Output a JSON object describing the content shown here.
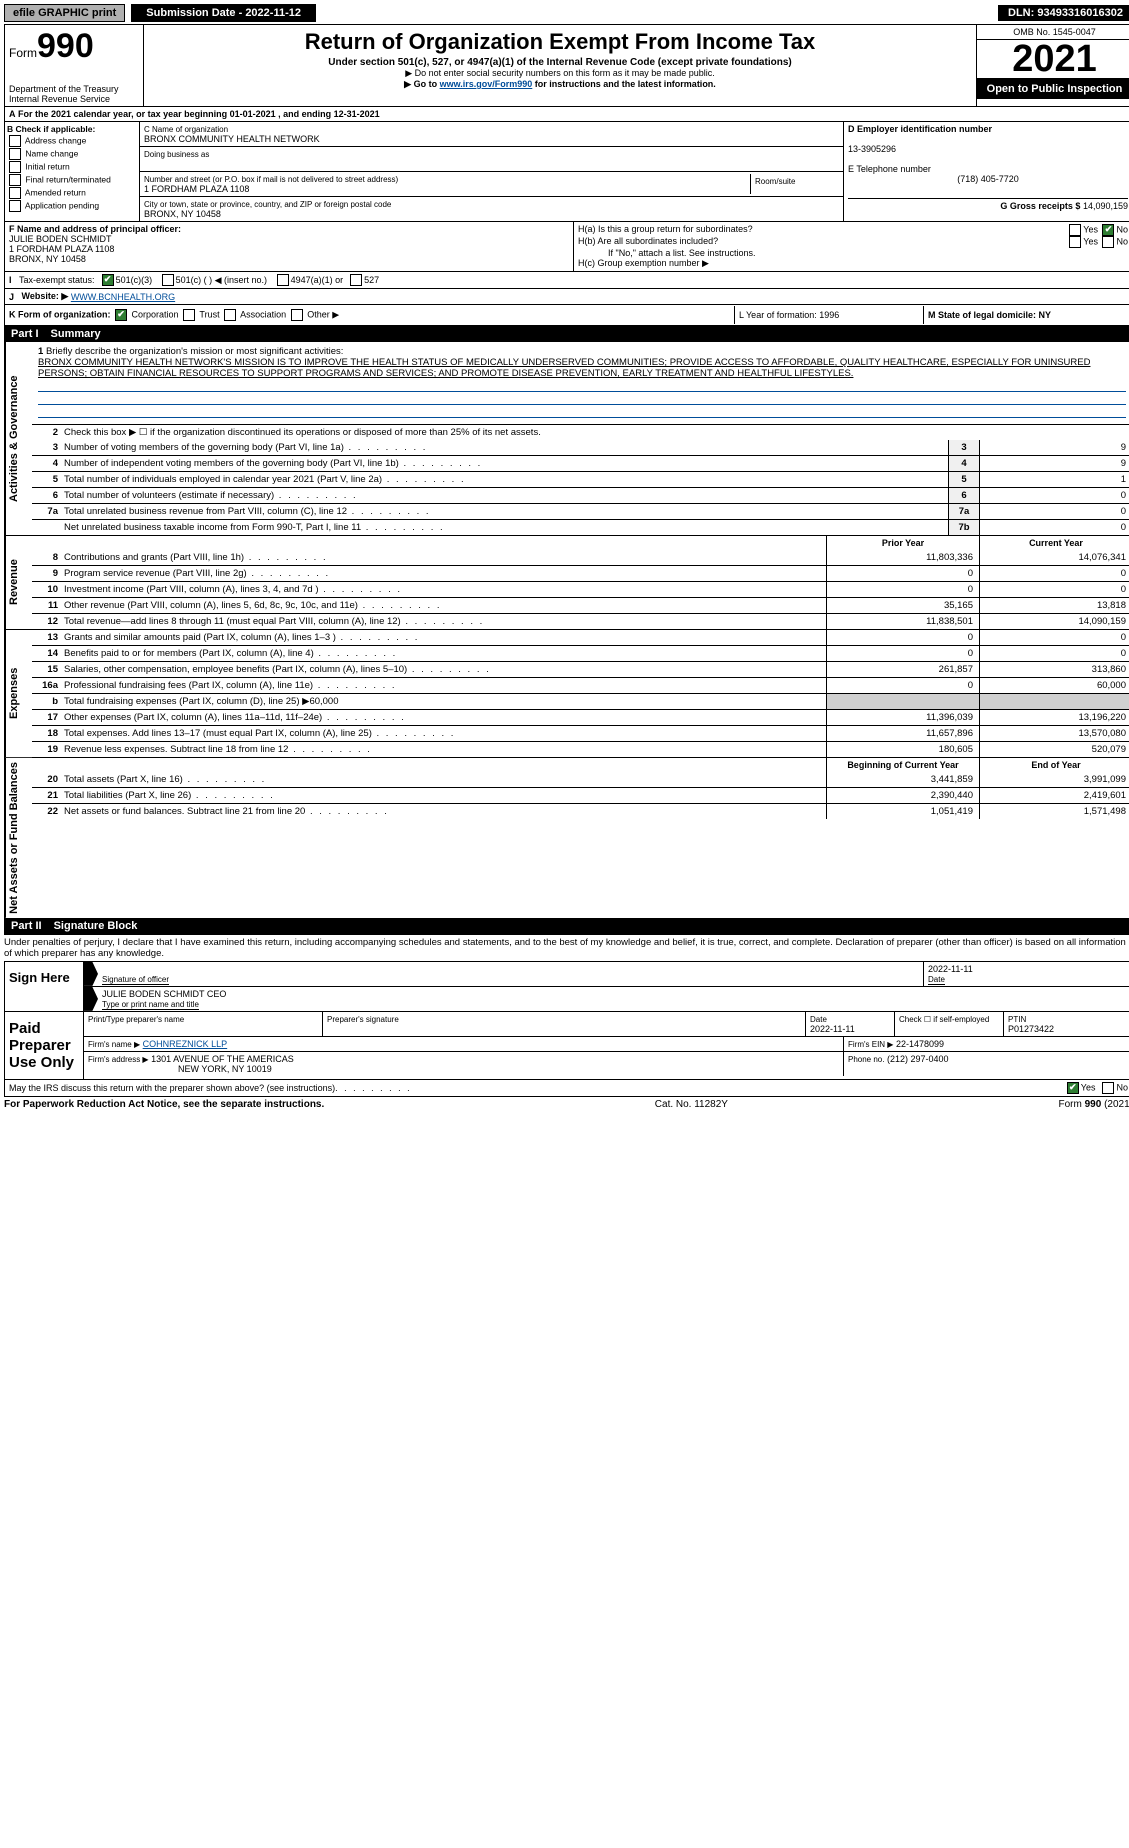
{
  "top": {
    "efile": "efile GRAPHIC print",
    "submission_label": "Submission Date - 2022-11-12",
    "dln": "DLN: 93493316016302"
  },
  "header": {
    "form_label": "Form",
    "form_num": "990",
    "dept": "Department of the Treasury",
    "irs": "Internal Revenue Service",
    "title": "Return of Organization Exempt From Income Tax",
    "sub": "Under section 501(c), 527, or 4947(a)(1) of the Internal Revenue Code (except private foundations)",
    "note1": "▶ Do not enter social security numbers on this form as it may be made public.",
    "note2_pre": "▶ Go to ",
    "note2_link": "www.irs.gov/Form990",
    "note2_post": " for instructions and the latest information.",
    "omb": "OMB No. 1545-0047",
    "year": "2021",
    "open": "Open to Public Inspection"
  },
  "section_a": {
    "line": "For the 2021 calendar year, or tax year beginning 01-01-2021    , and ending 12-31-2021",
    "b_header": "B Check if applicable:",
    "b_items": [
      "Address change",
      "Name change",
      "Initial return",
      "Final return/terminated",
      "Amended return",
      "Application pending"
    ],
    "c_name_label": "C Name of organization",
    "c_name": "BRONX COMMUNITY HEALTH NETWORK",
    "dba_label": "Doing business as",
    "addr_label": "Number and street (or P.O. box if mail is not delivered to street address)",
    "addr": "1 FORDHAM PLAZA 1108",
    "room_label": "Room/suite",
    "city_label": "City or town, state or province, country, and ZIP or foreign postal code",
    "city": "BRONX, NY  10458",
    "d_label": "D Employer identification number",
    "d_ein": "13-3905296",
    "e_label": "E Telephone number",
    "e_phone": "(718) 405-7720",
    "g_label": "G Gross receipts $",
    "g_val": "14,090,159",
    "f_label": "F  Name and address of principal officer:",
    "f_name": "JULIE BODEN SCHMIDT",
    "f_addr1": "1 FORDHAM PLAZA 1108",
    "f_addr2": "BRONX, NY  10458",
    "ha": "H(a)  Is this a group return for subordinates?",
    "hb": "H(b)  Are all subordinates included?",
    "hb_note": "If \"No,\" attach a list. See instructions.",
    "hc": "H(c)  Group exemption number ▶",
    "i_label": "Tax-exempt status:",
    "i_501c3": "501(c)(3)",
    "i_501c": "501(c) (   ) ◀ (insert no.)",
    "i_4947": "4947(a)(1) or",
    "i_527": "527",
    "j_label": "Website: ▶",
    "j_val": "WWW.BCNHEALTH.ORG",
    "k_label": "K Form of organization:",
    "k_corp": "Corporation",
    "k_trust": "Trust",
    "k_assoc": "Association",
    "k_other": "Other ▶",
    "l_label": "L Year of formation: 1996",
    "m_label": "M State of legal domicile: NY"
  },
  "part1": {
    "title": "Part I",
    "subtitle": "Summary",
    "q1_label": "1",
    "q1": "Briefly describe the organization's mission or most significant activities:",
    "mission": "BRONX COMMUNITY HEALTH NETWORK'S MISSION IS TO IMPROVE THE HEALTH STATUS OF MEDICALLY UNDERSERVED COMMUNITIES; PROVIDE ACCESS TO AFFORDABLE, QUALITY HEALTHCARE, ESPECIALLY FOR UNINSURED PERSONS; OBTAIN FINANCIAL RESOURCES TO SUPPORT PROGRAMS AND SERVICES; AND PROMOTE DISEASE PREVENTION, EARLY TREATMENT AND HEALTHFUL LIFESTYLES.",
    "tab_gov": "Activities & Governance",
    "tab_rev": "Revenue",
    "tab_exp": "Expenses",
    "tab_net": "Net Assets or Fund Balances",
    "q2": "Check this box ▶ ☐  if the organization discontinued its operations or disposed of more than 25% of its net assets.",
    "lines_single": [
      {
        "n": "3",
        "t": "Number of voting members of the governing body (Part VI, line 1a)",
        "box": "3",
        "v": "9"
      },
      {
        "n": "4",
        "t": "Number of independent voting members of the governing body (Part VI, line 1b)",
        "box": "4",
        "v": "9"
      },
      {
        "n": "5",
        "t": "Total number of individuals employed in calendar year 2021 (Part V, line 2a)",
        "box": "5",
        "v": "1"
      },
      {
        "n": "6",
        "t": "Total number of volunteers (estimate if necessary)",
        "box": "6",
        "v": "0"
      },
      {
        "n": "7a",
        "t": "Total unrelated business revenue from Part VIII, column (C), line 12",
        "box": "7a",
        "v": "0"
      },
      {
        "n": "",
        "t": "Net unrelated business taxable income from Form 990-T, Part I, line 11",
        "box": "7b",
        "v": "0"
      }
    ],
    "hdr_prior": "Prior Year",
    "hdr_curr": "Current Year",
    "rev_lines": [
      {
        "n": "8",
        "t": "Contributions and grants (Part VIII, line 1h)",
        "p": "11,803,336",
        "c": "14,076,341"
      },
      {
        "n": "9",
        "t": "Program service revenue (Part VIII, line 2g)",
        "p": "0",
        "c": "0"
      },
      {
        "n": "10",
        "t": "Investment income (Part VIII, column (A), lines 3, 4, and 7d )",
        "p": "0",
        "c": "0"
      },
      {
        "n": "11",
        "t": "Other revenue (Part VIII, column (A), lines 5, 6d, 8c, 9c, 10c, and 11e)",
        "p": "35,165",
        "c": "13,818"
      },
      {
        "n": "12",
        "t": "Total revenue—add lines 8 through 11 (must equal Part VIII, column (A), line 12)",
        "p": "11,838,501",
        "c": "14,090,159"
      }
    ],
    "exp_lines": [
      {
        "n": "13",
        "t": "Grants and similar amounts paid (Part IX, column (A), lines 1–3 )",
        "p": "0",
        "c": "0"
      },
      {
        "n": "14",
        "t": "Benefits paid to or for members (Part IX, column (A), line 4)",
        "p": "0",
        "c": "0"
      },
      {
        "n": "15",
        "t": "Salaries, other compensation, employee benefits (Part IX, column (A), lines 5–10)",
        "p": "261,857",
        "c": "313,860"
      },
      {
        "n": "16a",
        "t": "Professional fundraising fees (Part IX, column (A), line 11e)",
        "p": "0",
        "c": "60,000"
      },
      {
        "n": "b",
        "t": "Total fundraising expenses (Part IX, column (D), line 25) ▶60,000",
        "p": "",
        "c": "",
        "gray": true
      },
      {
        "n": "17",
        "t": "Other expenses (Part IX, column (A), lines 11a–11d, 11f–24e)",
        "p": "11,396,039",
        "c": "13,196,220"
      },
      {
        "n": "18",
        "t": "Total expenses. Add lines 13–17 (must equal Part IX, column (A), line 25)",
        "p": "11,657,896",
        "c": "13,570,080"
      },
      {
        "n": "19",
        "t": "Revenue less expenses. Subtract line 18 from line 12",
        "p": "180,605",
        "c": "520,079"
      }
    ],
    "hdr_begin": "Beginning of Current Year",
    "hdr_end": "End of Year",
    "net_lines": [
      {
        "n": "20",
        "t": "Total assets (Part X, line 16)",
        "p": "3,441,859",
        "c": "3,991,099"
      },
      {
        "n": "21",
        "t": "Total liabilities (Part X, line 26)",
        "p": "2,390,440",
        "c": "2,419,601"
      },
      {
        "n": "22",
        "t": "Net assets or fund balances. Subtract line 21 from line 20",
        "p": "1,051,419",
        "c": "1,571,498"
      }
    ]
  },
  "part2": {
    "title": "Part II",
    "subtitle": "Signature Block",
    "decl": "Under penalties of perjury, I declare that I have examined this return, including accompanying schedules and statements, and to the best of my knowledge and belief, it is true, correct, and complete. Declaration of preparer (other than officer) is based on all information of which preparer has any knowledge.",
    "sign_here": "Sign Here",
    "sig_officer": "Signature of officer",
    "sig_date": "2022-11-11",
    "officer_name": "JULIE BODEN SCHMIDT CEO",
    "type_name": "Type or print name and title",
    "paid": "Paid Preparer Use Only",
    "prep_name_label": "Print/Type preparer's name",
    "prep_sig_label": "Preparer's signature",
    "prep_date_label": "Date",
    "prep_date": "2022-11-11",
    "self_emp": "Check ☐ if self-employed",
    "ptin_label": "PTIN",
    "ptin": "P01273422",
    "firm_name_label": "Firm's name    ▶",
    "firm_name": "COHNREZNICK LLP",
    "firm_ein_label": "Firm's EIN ▶",
    "firm_ein": "22-1478099",
    "firm_addr_label": "Firm's address ▶",
    "firm_addr1": "1301 AVENUE OF THE AMERICAS",
    "firm_addr2": "NEW YORK, NY  10019",
    "phone_label": "Phone no.",
    "phone": "(212) 297-0400",
    "discuss": "May the IRS discuss this return with the preparer shown above? (see instructions)"
  },
  "footer": {
    "left": "For Paperwork Reduction Act Notice, see the separate instructions.",
    "mid": "Cat. No. 11282Y",
    "right": "Form 990 (2021)"
  }
}
